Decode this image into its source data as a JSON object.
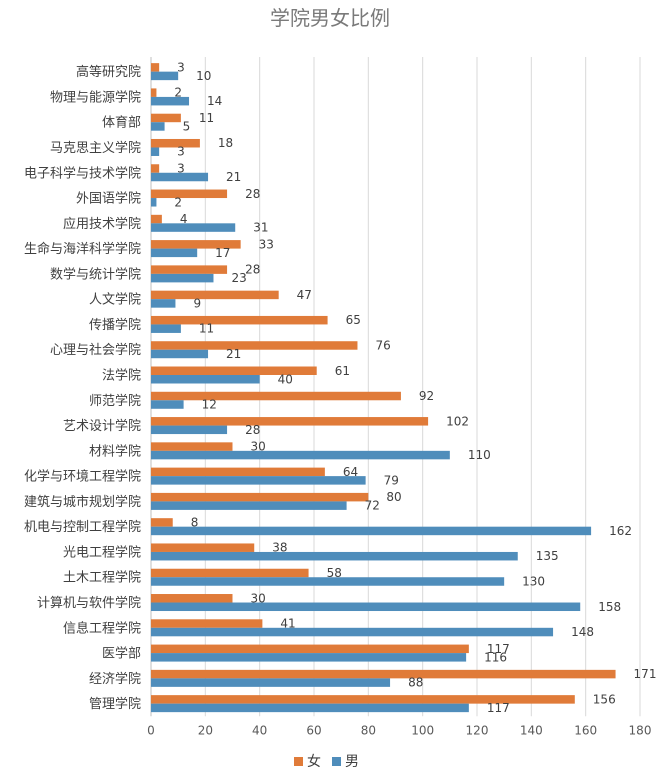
{
  "chart_data": {
    "type": "bar",
    "orientation": "horizontal",
    "title": "学院男女比例",
    "xlabel": "",
    "ylabel": "",
    "xlim": [
      0,
      180
    ],
    "x_ticks": [
      "0",
      "20",
      "40",
      "60",
      "80",
      "100",
      "120",
      "140",
      "160",
      "180"
    ],
    "grid": "vertical",
    "legend_position": "bottom",
    "colors": {
      "female": "#E07B39",
      "male": "#4F8DBB",
      "grid": "#D9D9D9",
      "axis": "#BFBFBF"
    },
    "categories": [
      "高等研究院",
      "物理与能源学院",
      "体育部",
      "马克思主义学院",
      "电子科学与技术学院",
      "外国语学院",
      "应用技术学院",
      "生命与海洋科学学院",
      "数学与统计学院",
      "人文学院",
      "传播学院",
      "心理与社会学院",
      "法学院",
      "师范学院",
      "艺术设计学院",
      "材料学院",
      "化学与环境工程学院",
      "建筑与城市规划学院",
      "机电与控制工程学院",
      "光电工程学院",
      "土木工程学院",
      "计算机与软件学院",
      "信息工程学院",
      "医学部",
      "经济学院",
      "管理学院"
    ],
    "series": [
      {
        "name": "女",
        "color": "#E07B39",
        "values": [
          3,
          2,
          11,
          18,
          3,
          28,
          4,
          33,
          28,
          47,
          65,
          76,
          61,
          92,
          102,
          30,
          64,
          80,
          8,
          38,
          58,
          30,
          41,
          117,
          171,
          156
        ]
      },
      {
        "name": "男",
        "color": "#4F8DBB",
        "values": [
          10,
          14,
          5,
          3,
          21,
          2,
          31,
          17,
          23,
          9,
          11,
          21,
          40,
          12,
          28,
          110,
          79,
          72,
          162,
          135,
          130,
          158,
          148,
          116,
          88,
          117
        ]
      }
    ]
  }
}
